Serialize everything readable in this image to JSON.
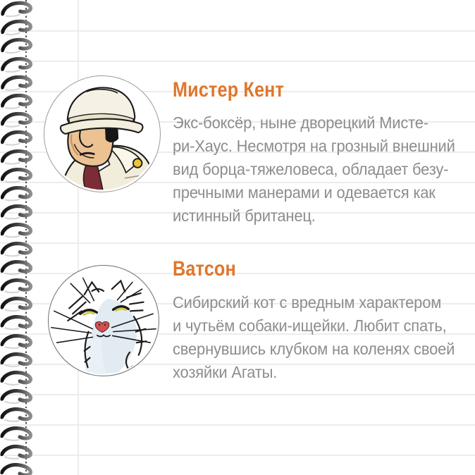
{
  "theme": {
    "accent_color": "#e0762c",
    "body_text_color": "#8d8d8d",
    "ruled_line_color": "#ececec",
    "perforation_dot_color": "#4d4d4d",
    "spiral_color_dark": "#161616",
    "spiral_color_light": "#8f8f8f"
  },
  "notebook": {
    "spiral_icon": "spiral-ring-icon",
    "perforation_icon": "dotted-perforation-line"
  },
  "profiles": [
    {
      "name": "Мистер Кент",
      "portrait": "butler-portrait",
      "body_lines": [
        "Экс-боксёр, ныне дворецкий Мисте-",
        "ри-Хаус. Несмотря на грозный внешний",
        "вид борца-тяжеловеса, обладает безу-",
        "пречными манерами и одевается как",
        "истинный британец."
      ]
    },
    {
      "name": "Ватсон",
      "portrait": "cat-portrait",
      "body_lines": [
        "Сибирский кот с вредным характером",
        "и чутьём собаки-ищейки. Любит спать,",
        "свернувшись клубком на коленях своей",
        "хозяйки Агаты."
      ]
    }
  ]
}
